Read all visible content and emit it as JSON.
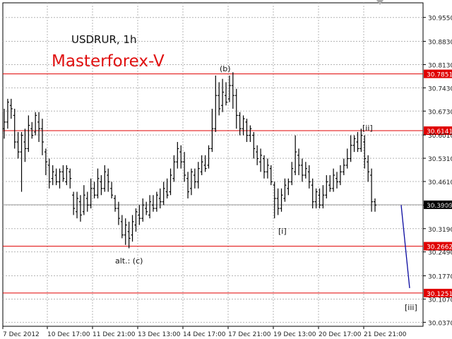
{
  "header": {
    "symbol": "USDRUR, 1h",
    "brand": "Masterforex-V"
  },
  "chart_data": {
    "type": "candlestick",
    "title": "USDRUR, 1h",
    "ylim": [
      30.025,
      30.999
    ],
    "y_ticks": [
      "30.9550",
      "30.8830",
      "30.8130",
      "30.7430",
      "30.6730",
      "30.6010",
      "30.5310",
      "30.4610",
      "30.3900",
      "30.3190",
      "30.2490",
      "30.1770",
      "30.1070",
      "30.0370"
    ],
    "x_ticks": [
      "7 Dec 2012",
      "10 Dec 17:00",
      "11 Dec 21:00",
      "13 Dec 13:00",
      "14 Dec 17:00",
      "17 Dec 21:00",
      "19 Dec 13:00",
      "20 Dec 17:00",
      "21 Dec 21:00"
    ],
    "grid": true,
    "current_price": "30.3909",
    "levels": [
      {
        "label": "30.7851",
        "value": 30.7851,
        "color": "#e00000"
      },
      {
        "label": "30.6141",
        "value": 30.6141,
        "color": "#e00000"
      },
      {
        "label": "30.2662",
        "value": 30.2662,
        "color": "#e00000"
      },
      {
        "label": "30.1251",
        "value": 30.1251,
        "color": "#e00000"
      }
    ],
    "wave_labels": [
      {
        "text": "(b)",
        "near": "17 Dec",
        "value": 30.8
      },
      {
        "text": "[ii]",
        "near": "21 Dec",
        "value": 30.62
      },
      {
        "text": "[i]",
        "near": "19 Dec",
        "value": 30.32
      },
      {
        "text": "alt.: (c)",
        "near": "12 Dec",
        "value": 30.24
      },
      {
        "text": "[iii]",
        "near": "21 Dec 21:00",
        "value": 30.1
      }
    ],
    "projection": {
      "from": 30.39,
      "to": 30.14,
      "color": "#0a0aa0"
    },
    "series": [
      {
        "values": [
          [
            30.62,
            30.64,
            30.68,
            30.59
          ],
          [
            30.64,
            30.7,
            30.71,
            30.62
          ],
          [
            30.69,
            30.68,
            30.71,
            30.65
          ],
          [
            30.66,
            30.58,
            30.68,
            30.56
          ],
          [
            30.58,
            30.55,
            30.61,
            30.53
          ],
          [
            30.55,
            30.6,
            30.61,
            30.43
          ],
          [
            30.58,
            30.56,
            30.62,
            30.52
          ],
          [
            30.56,
            30.63,
            30.66,
            30.55
          ],
          [
            30.62,
            30.6,
            30.64,
            30.59
          ],
          [
            30.61,
            30.66,
            30.67,
            30.6
          ],
          [
            30.64,
            30.62,
            30.67,
            30.58
          ],
          [
            30.62,
            30.58,
            30.65,
            30.54
          ],
          [
            30.55,
            30.52,
            30.56,
            30.48
          ],
          [
            30.51,
            30.46,
            30.53,
            30.44
          ],
          [
            30.47,
            30.49,
            30.51,
            30.45
          ],
          [
            30.48,
            30.46,
            30.5,
            30.45
          ],
          [
            30.46,
            30.49,
            30.5,
            30.44
          ],
          [
            30.49,
            30.47,
            30.51,
            30.46
          ],
          [
            30.46,
            30.5,
            30.51,
            30.45
          ],
          [
            30.49,
            30.47,
            30.5,
            30.44
          ],
          [
            30.42,
            30.38,
            30.43,
            30.36
          ],
          [
            30.37,
            30.41,
            30.43,
            30.35
          ],
          [
            30.4,
            30.36,
            30.42,
            30.34
          ],
          [
            30.37,
            30.42,
            30.45,
            30.36
          ],
          [
            30.41,
            30.39,
            30.43,
            30.37
          ],
          [
            30.39,
            30.44,
            30.47,
            30.38
          ],
          [
            30.44,
            30.42,
            30.46,
            30.41
          ],
          [
            30.42,
            30.47,
            30.5,
            30.41
          ],
          [
            30.46,
            30.44,
            30.48,
            30.42
          ],
          [
            30.44,
            30.49,
            30.51,
            30.43
          ],
          [
            30.48,
            30.46,
            30.5,
            30.43
          ],
          [
            30.44,
            30.42,
            30.46,
            30.41
          ],
          [
            30.41,
            30.38,
            30.42,
            30.37
          ],
          [
            30.38,
            30.35,
            30.4,
            30.33
          ],
          [
            30.34,
            30.3,
            30.36,
            30.29
          ],
          [
            30.3,
            30.33,
            30.35,
            30.27
          ],
          [
            30.31,
            30.29,
            30.34,
            30.26
          ],
          [
            30.3,
            30.34,
            30.36,
            30.28
          ],
          [
            30.33,
            30.37,
            30.38,
            30.31
          ],
          [
            30.36,
            30.35,
            30.39,
            30.33
          ],
          [
            30.35,
            30.39,
            30.41,
            30.34
          ],
          [
            30.38,
            30.37,
            30.4,
            30.36
          ],
          [
            30.36,
            30.4,
            30.42,
            30.35
          ],
          [
            30.39,
            30.38,
            30.42,
            30.37
          ],
          [
            30.38,
            30.42,
            30.43,
            30.37
          ],
          [
            30.41,
            30.4,
            30.44,
            30.38
          ],
          [
            30.4,
            30.44,
            30.46,
            30.39
          ],
          [
            30.43,
            30.42,
            30.47,
            30.41
          ],
          [
            30.43,
            30.48,
            30.5,
            30.42
          ],
          [
            30.47,
            30.52,
            30.54,
            30.46
          ],
          [
            30.52,
            30.56,
            30.58,
            30.5
          ],
          [
            30.55,
            30.52,
            30.57,
            30.5
          ],
          [
            30.52,
            30.48,
            30.55,
            30.46
          ],
          [
            30.47,
            30.43,
            30.49,
            30.41
          ],
          [
            30.44,
            30.49,
            30.5,
            30.42
          ],
          [
            30.48,
            30.46,
            30.5,
            30.44
          ],
          [
            30.46,
            30.5,
            30.52,
            30.44
          ],
          [
            30.49,
            30.52,
            30.54,
            30.48
          ],
          [
            30.51,
            30.5,
            30.54,
            30.49
          ],
          [
            30.51,
            30.56,
            30.57,
            30.5
          ],
          [
            30.56,
            30.62,
            30.68,
            30.55
          ],
          [
            30.62,
            30.72,
            30.78,
            30.61
          ],
          [
            30.72,
            30.68,
            30.76,
            30.66
          ],
          [
            30.69,
            30.73,
            30.77,
            30.67
          ],
          [
            30.72,
            30.7,
            30.76,
            30.69
          ],
          [
            30.71,
            30.75,
            30.78,
            30.7
          ],
          [
            30.75,
            30.72,
            30.79,
            30.68
          ],
          [
            30.72,
            30.66,
            30.74,
            30.62
          ],
          [
            30.66,
            30.62,
            30.67,
            30.6
          ],
          [
            30.62,
            30.65,
            30.66,
            30.6
          ],
          [
            30.64,
            30.6,
            30.65,
            30.58
          ],
          [
            30.6,
            30.62,
            30.63,
            30.58
          ],
          [
            30.6,
            30.56,
            30.61,
            30.53
          ],
          [
            30.55,
            30.53,
            30.57,
            30.51
          ],
          [
            30.52,
            30.54,
            30.56,
            30.49
          ],
          [
            30.53,
            30.49,
            30.54,
            30.47
          ],
          [
            30.49,
            30.51,
            30.53,
            30.47
          ],
          [
            30.5,
            30.46,
            30.51,
            30.45
          ],
          [
            30.45,
            30.41,
            30.46,
            30.35
          ],
          [
            30.41,
            30.38,
            30.44,
            30.36
          ],
          [
            30.38,
            30.42,
            30.44,
            30.37
          ],
          [
            30.41,
            30.45,
            30.47,
            30.4
          ],
          [
            30.44,
            30.46,
            30.47,
            30.42
          ],
          [
            30.46,
            30.5,
            30.52,
            30.45
          ],
          [
            30.49,
            30.55,
            30.6,
            30.48
          ],
          [
            30.54,
            30.51,
            30.56,
            30.48
          ],
          [
            30.51,
            30.48,
            30.53,
            30.46
          ],
          [
            30.48,
            30.5,
            30.52,
            30.47
          ],
          [
            30.49,
            30.46,
            30.51,
            30.44
          ],
          [
            30.45,
            30.4,
            30.47,
            30.38
          ],
          [
            30.4,
            30.43,
            30.44,
            30.38
          ],
          [
            30.42,
            30.39,
            30.44,
            30.38
          ],
          [
            30.39,
            30.42,
            30.45,
            30.38
          ],
          [
            30.42,
            30.46,
            30.48,
            30.41
          ],
          [
            30.45,
            30.44,
            30.48,
            30.43
          ],
          [
            30.44,
            30.48,
            30.5,
            30.43
          ],
          [
            30.47,
            30.46,
            30.49,
            30.44
          ],
          [
            30.46,
            30.49,
            30.51,
            30.45
          ],
          [
            30.49,
            30.51,
            30.53,
            30.48
          ],
          [
            30.51,
            30.53,
            30.56,
            30.5
          ],
          [
            30.53,
            30.57,
            30.6,
            30.52
          ],
          [
            30.57,
            30.59,
            30.6,
            30.55
          ],
          [
            30.58,
            30.56,
            30.61,
            30.55
          ],
          [
            30.56,
            30.6,
            30.62,
            30.55
          ],
          [
            30.58,
            30.53,
            30.6,
            30.5
          ],
          [
            30.52,
            30.49,
            30.54,
            30.46
          ],
          [
            30.48,
            30.4,
            30.5,
            30.37
          ],
          [
            30.4,
            30.39,
            30.41,
            30.37
          ]
        ]
      }
    ]
  }
}
